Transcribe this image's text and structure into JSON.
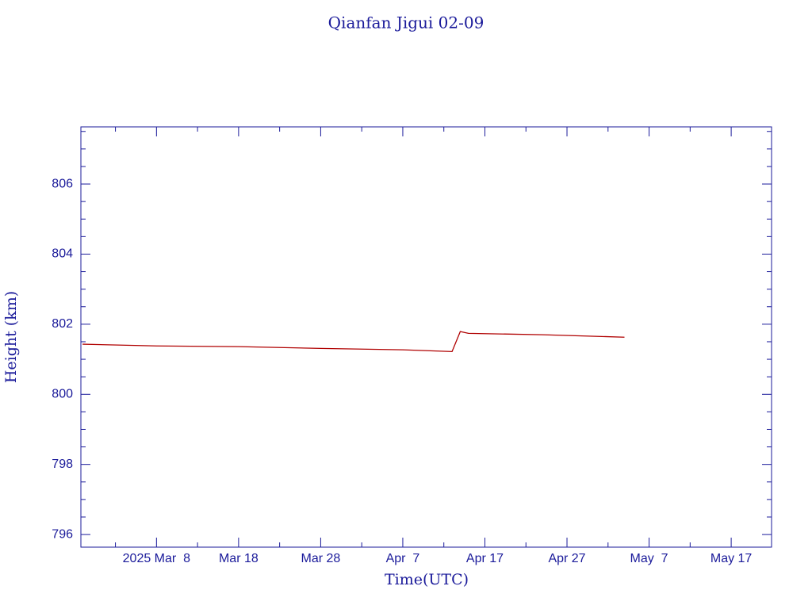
{
  "chart_data": {
    "type": "line",
    "title": "Qianfan Jigui 02-09",
    "x_label": "Time(UTC)",
    "y_label": "Height (km)",
    "x": [
      "2025-02-27",
      "2025-03-08",
      "2025-03-18",
      "2025-03-28",
      "2025-04-07",
      "2025-04-13",
      "2025-04-14",
      "2025-04-15",
      "2025-04-24",
      "2025-05-04"
    ],
    "series": [
      {
        "name": "Height",
        "color": "#b00000",
        "values": [
          801.43,
          801.38,
          801.36,
          801.31,
          801.27,
          801.22,
          801.79,
          801.74,
          801.7,
          801.63
        ]
      }
    ],
    "xlim": [
      "2025-02-26T19:00Z",
      "2025-05-21T22:00Z"
    ],
    "xticks": [
      {
        "value": "2025-03-08",
        "label": "2025 Mar  8"
      },
      {
        "value": "2025-03-18",
        "label": "Mar 18"
      },
      {
        "value": "2025-03-28",
        "label": "Mar 28"
      },
      {
        "value": "2025-04-07",
        "label": "Apr  7"
      },
      {
        "value": "2025-04-17",
        "label": "Apr 17"
      },
      {
        "value": "2025-04-27",
        "label": "Apr 27"
      },
      {
        "value": "2025-05-07",
        "label": "May  7"
      },
      {
        "value": "2025-05-17",
        "label": "May 17"
      }
    ],
    "xminorticks": [
      "2025-03-03",
      "2025-03-13",
      "2025-03-23",
      "2025-04-02",
      "2025-04-12",
      "2025-04-22",
      "2025-05-02",
      "2025-05-12"
    ],
    "ylim": [
      795.64,
      807.63
    ],
    "yticks": [
      796,
      798,
      800,
      802,
      804,
      806
    ],
    "yminorticks": [
      796.5,
      797,
      797.5,
      798.5,
      799,
      799.5,
      800.5,
      801,
      801.5,
      802.5,
      803,
      803.5,
      804.5,
      805,
      805.5,
      806.5,
      807,
      807.5
    ],
    "axis_color": "#1a1a9a"
  }
}
